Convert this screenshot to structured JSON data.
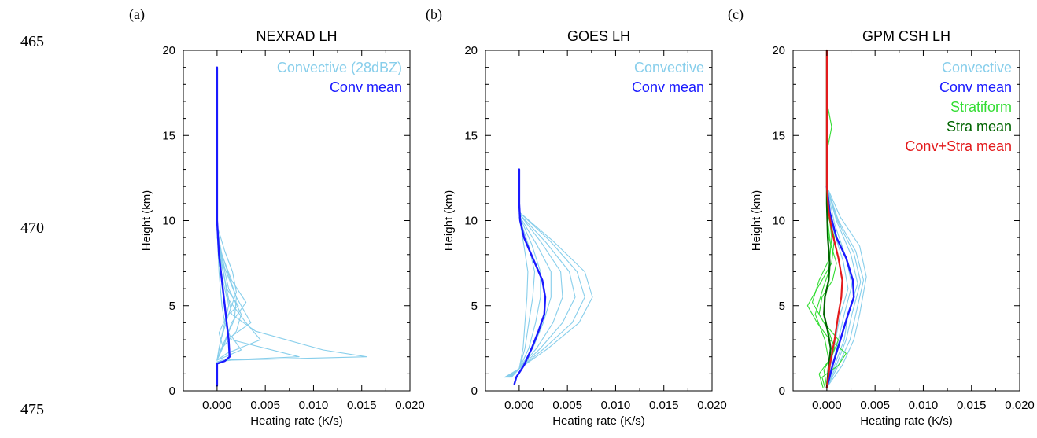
{
  "line_numbers": [
    "465",
    "470",
    "475"
  ],
  "chart_data": [
    {
      "type": "line",
      "panel_label": "(a)",
      "title": "NEXRAD LH",
      "xlabel": "Heating rate (K/s)",
      "ylabel": "Height (km)",
      "xlim": [
        -0.0035,
        0.02
      ],
      "ylim": [
        0,
        20
      ],
      "xticks": [
        "0.000",
        "0.005",
        "0.010",
        "0.015",
        "0.020"
      ],
      "yticks": [
        "0",
        "5",
        "10",
        "15",
        "20"
      ],
      "legend_position": "top-right",
      "legend": [
        {
          "label": "Convective (28dBZ)",
          "color": "#87ceeb"
        },
        {
          "label": "Conv mean",
          "color": "#1a1aff"
        }
      ],
      "series": [
        {
          "color": "#87ceeb",
          "x": [
            0,
            0,
            0.0005,
            0.0085,
            0.0015,
            0.0008,
            0.0005,
            0.0002,
            0,
            0
          ],
          "y": [
            1.6,
            1.7,
            1.8,
            2.0,
            3.0,
            4.0,
            5.0,
            7.0,
            9.5,
            10
          ]
        },
        {
          "color": "#87ceeb",
          "x": [
            0,
            0,
            0.0015,
            0.0155,
            0.011,
            0.004,
            0.0015,
            0.001,
            0.0003,
            0
          ],
          "y": [
            1.6,
            1.7,
            1.8,
            2.0,
            2.4,
            3.5,
            4.5,
            6.0,
            8.0,
            9.5
          ]
        },
        {
          "color": "#87ceeb",
          "x": [
            0,
            0.001,
            0.0045,
            0.003,
            0.001,
            0.0002,
            0
          ],
          "y": [
            1.8,
            2.2,
            3.0,
            4.0,
            5.5,
            7.5,
            9.5
          ]
        },
        {
          "color": "#87ceeb",
          "x": [
            0,
            0.0005,
            0.002,
            0.0025,
            0.0012,
            0.0004,
            0
          ],
          "y": [
            1.8,
            2.5,
            3.5,
            4.5,
            6.0,
            8.0,
            9.8
          ]
        },
        {
          "color": "#87ceeb",
          "x": [
            0,
            0.0008,
            0.0015,
            0.003,
            0.0015,
            0.0005,
            0
          ],
          "y": [
            1.8,
            2.8,
            4.0,
            5.2,
            6.5,
            8.0,
            9.5
          ]
        },
        {
          "color": "#87ceeb",
          "x": [
            0,
            0.0002,
            0.0006,
            0.0012,
            0.0008,
            0.0002,
            0
          ],
          "y": [
            1.8,
            2.5,
            3.5,
            5.0,
            6.5,
            8.5,
            10
          ]
        },
        {
          "color": "#87ceeb",
          "x": [
            0,
            0.0003,
            0.001,
            0.0018,
            0.002,
            0.0012,
            0.0004,
            0
          ],
          "y": [
            1.8,
            2.3,
            3.2,
            4.2,
            5.5,
            6.8,
            8.2,
            9.6
          ]
        },
        {
          "color": "#87ceeb",
          "x": [
            0,
            0.0004,
            0.0012,
            0.002,
            0.0016,
            0.0008,
            0
          ],
          "y": [
            1.8,
            3.0,
            4.5,
            5.8,
            7.0,
            8.2,
            9.7
          ]
        },
        {
          "color": "#87ceeb",
          "x": [
            0,
            0.0006,
            0.0002,
            0.001,
            0.0022,
            0.001,
            0.0003,
            0
          ],
          "y": [
            1.8,
            2.6,
            3.4,
            4.4,
            5.0,
            6.0,
            7.8,
            9.4
          ]
        },
        {
          "color": "#87ceeb",
          "x": [
            0,
            0.0025,
            0.0015,
            0.0035,
            0.002,
            0.0008,
            0
          ],
          "y": [
            1.8,
            2.4,
            3.2,
            4.0,
            5.5,
            7.2,
            9.0
          ]
        },
        {
          "color": "#1a1aff",
          "width": 2.4,
          "x": [
            0,
            0,
            0.0008,
            0.0013,
            0.0012,
            0.001,
            0.0008,
            0.0006,
            0.0002,
            0,
            0
          ],
          "y": [
            0.3,
            1.6,
            1.75,
            2.0,
            3.0,
            4.0,
            5.0,
            6.0,
            8.0,
            10,
            19
          ]
        }
      ]
    },
    {
      "type": "line",
      "panel_label": "(b)",
      "title": "GOES LH",
      "xlabel": "Heating rate (K/s)",
      "ylabel": "Height (km)",
      "xlim": [
        -0.0035,
        0.02
      ],
      "ylim": [
        0,
        20
      ],
      "xticks": [
        "0.000",
        "0.005",
        "0.010",
        "0.015",
        "0.020"
      ],
      "yticks": [
        "0",
        "5",
        "10",
        "15",
        "20"
      ],
      "legend_position": "top-right",
      "legend": [
        {
          "label": "Convective",
          "color": "#87ceeb"
        },
        {
          "label": "Conv mean",
          "color": "#1a1aff"
        }
      ],
      "series": [
        {
          "color": "#87ceeb",
          "x": [
            -0.0008,
            0,
            0.0004,
            0.0006,
            0.0008,
            0.0009,
            0.0005,
            0
          ],
          "y": [
            0.8,
            1.3,
            2.5,
            4.0,
            5.5,
            7.0,
            8.5,
            10.2
          ]
        },
        {
          "color": "#87ceeb",
          "x": [
            -0.0009,
            0,
            0.0006,
            0.001,
            0.0014,
            0.0016,
            0.001,
            0
          ],
          "y": [
            0.8,
            1.3,
            2.5,
            4.0,
            5.5,
            7.0,
            8.5,
            10.2
          ]
        },
        {
          "color": "#87ceeb",
          "x": [
            -0.001,
            0,
            0.001,
            0.0017,
            0.0022,
            0.0022,
            0.0013,
            0
          ],
          "y": [
            0.8,
            1.3,
            2.5,
            4.0,
            5.5,
            7.0,
            8.6,
            10.3
          ]
        },
        {
          "color": "#87ceeb",
          "x": [
            -0.0011,
            0,
            0.0014,
            0.0025,
            0.0033,
            0.0033,
            0.0018,
            0
          ],
          "y": [
            0.8,
            1.3,
            2.5,
            4.0,
            5.5,
            7.0,
            8.6,
            10.3
          ]
        },
        {
          "color": "#87ceeb",
          "x": [
            -0.0012,
            0,
            0.0018,
            0.0035,
            0.0045,
            0.0043,
            0.0023,
            0
          ],
          "y": [
            0.8,
            1.3,
            2.5,
            4.0,
            5.5,
            7.0,
            8.7,
            10.4
          ]
        },
        {
          "color": "#87ceeb",
          "x": [
            -0.0013,
            0,
            0.0022,
            0.0045,
            0.0058,
            0.0052,
            0.0028,
            0
          ],
          "y": [
            0.8,
            1.3,
            2.5,
            4.0,
            5.5,
            7.0,
            8.7,
            10.4
          ]
        },
        {
          "color": "#87ceeb",
          "x": [
            -0.0014,
            0,
            0.0026,
            0.0055,
            0.0068,
            0.006,
            0.0032,
            0
          ],
          "y": [
            0.8,
            1.3,
            2.5,
            4.0,
            5.5,
            7.0,
            8.8,
            10.5
          ]
        },
        {
          "color": "#87ceeb",
          "x": [
            -0.0015,
            0,
            0.003,
            0.0062,
            0.0076,
            0.0068,
            0.0035,
            0
          ],
          "y": [
            0.8,
            1.3,
            2.5,
            4.0,
            5.5,
            7.0,
            8.8,
            10.5
          ]
        },
        {
          "color": "#1a1aff",
          "width": 2.4,
          "x": [
            -0.0005,
            -0.0003,
            0.0005,
            0.0013,
            0.002,
            0.0026,
            0.0027,
            0.0024,
            0.0014,
            0.0005,
            0.0001,
            0,
            0
          ],
          "y": [
            0.4,
            0.8,
            1.5,
            2.5,
            3.5,
            4.5,
            5.5,
            6.5,
            7.8,
            9.0,
            10.0,
            11.0,
            13.0
          ]
        }
      ]
    },
    {
      "type": "line",
      "panel_label": "(c)",
      "title": "GPM CSH LH",
      "xlabel": "Heating rate (K/s)",
      "ylabel": "Height (km)",
      "xlim": [
        -0.0035,
        0.02
      ],
      "ylim": [
        0,
        20
      ],
      "xticks": [
        "0.000",
        "0.005",
        "0.010",
        "0.015",
        "0.020"
      ],
      "yticks": [
        "0",
        "5",
        "10",
        "15",
        "20"
      ],
      "legend_position": "top-right",
      "legend": [
        {
          "label": "Convective",
          "color": "#87ceeb"
        },
        {
          "label": "Conv mean",
          "color": "#1a1aff"
        },
        {
          "label": "Stratiform",
          "color": "#33dd33"
        },
        {
          "label": "Stra mean",
          "color": "#006400"
        },
        {
          "label": "Conv+Stra mean",
          "color": "#e31a1c"
        }
      ],
      "series": [
        {
          "color": "#87ceeb",
          "x": [
            0,
            0.0008,
            0.0018,
            0.0022,
            0.0032,
            0.0025,
            0.001,
            0
          ],
          "y": [
            0.2,
            1.5,
            3.0,
            4.5,
            6.3,
            8.0,
            10.0,
            12
          ]
        },
        {
          "color": "#87ceeb",
          "x": [
            0,
            0.0012,
            0.0024,
            0.003,
            0.0038,
            0.003,
            0.0012,
            0
          ],
          "y": [
            0.2,
            1.5,
            3.0,
            4.5,
            6.5,
            8.2,
            10.0,
            12
          ]
        },
        {
          "color": "#87ceeb",
          "x": [
            0,
            0.0016,
            0.0028,
            0.0034,
            0.0041,
            0.0034,
            0.0014,
            0
          ],
          "y": [
            0.2,
            1.5,
            3.0,
            4.5,
            6.7,
            8.5,
            10.2,
            12
          ]
        },
        {
          "color": "#87ceeb",
          "x": [
            0,
            0.0006,
            0.0012,
            0.0018,
            0.0026,
            0.002,
            0.0008,
            0
          ],
          "y": [
            0.2,
            1.5,
            3.0,
            4.5,
            6.2,
            7.8,
            9.8,
            12
          ]
        },
        {
          "color": "#87ceeb",
          "x": [
            0,
            0.001,
            0.002,
            0.0026,
            0.0035,
            0.0028,
            0.0011,
            0
          ],
          "y": [
            0.2,
            1.5,
            3.0,
            4.5,
            6.4,
            8.1,
            10.0,
            12
          ]
        },
        {
          "color": "#87ceeb",
          "x": [
            0,
            0.0004,
            0.0009,
            0.0014,
            0.0022,
            0.0017,
            0.0006,
            0
          ],
          "y": [
            0.2,
            1.5,
            3.0,
            4.5,
            6.0,
            7.6,
            9.6,
            12
          ]
        },
        {
          "color": "#33dd33",
          "x": [
            -0.0002,
            -0.0005,
            0.0012,
            0.002,
            0.0003,
            -0.001,
            -0.002,
            -0.001,
            0.0005,
            0.0008,
            0,
            0,
            0
          ],
          "y": [
            0.2,
            0.8,
            1.5,
            2.2,
            3.0,
            4.0,
            5.0,
            6.0,
            7.5,
            9.0,
            10.5,
            13,
            20
          ]
        },
        {
          "color": "#33dd33",
          "x": [
            -0.0004,
            -0.0008,
            0.0005,
            0.0012,
            -0.0003,
            -0.0015,
            -0.0008,
            0.0003,
            0.0005,
            0.0002,
            0,
            0
          ],
          "y": [
            0.2,
            1.0,
            2.0,
            3.0,
            4.0,
            5.2,
            6.5,
            7.8,
            9.0,
            10.5,
            12,
            20
          ]
        },
        {
          "color": "#33dd33",
          "x": [
            0,
            -0.0003,
            0.0008,
            0.0002,
            -0.0008,
            -0.0005,
            0.0006,
            0.001,
            0.0002,
            0,
            0,
            0.0005,
            0,
            0
          ],
          "y": [
            0.2,
            1.2,
            2.5,
            3.5,
            4.5,
            5.5,
            6.5,
            7.5,
            9.0,
            10.5,
            14,
            15.5,
            17,
            20
          ]
        },
        {
          "color": "#33dd33",
          "x": [
            0,
            0.0003,
            -0.0002,
            -0.0012,
            -0.0004,
            0.0002,
            0.0004,
            0,
            0
          ],
          "y": [
            0.2,
            1.5,
            3.0,
            4.5,
            6.0,
            7.0,
            8.5,
            10.5,
            20
          ]
        },
        {
          "color": "#006400",
          "width": 2.2,
          "x": [
            0,
            0.0002,
            0.0004,
            0.0001,
            -0.0003,
            -0.0002,
            0.0002,
            0.0003,
            0.0001,
            0,
            0
          ],
          "y": [
            0.2,
            1.5,
            2.5,
            3.5,
            4.5,
            5.5,
            6.5,
            7.5,
            9.0,
            11.0,
            20
          ]
        },
        {
          "color": "#1a1aff",
          "width": 2.4,
          "x": [
            0,
            0.0006,
            0.0014,
            0.0022,
            0.0028,
            0.0027,
            0.002,
            0.001,
            0.0003,
            0
          ],
          "y": [
            0.2,
            1.5,
            3.0,
            4.5,
            5.5,
            6.5,
            7.8,
            9.0,
            10.5,
            12
          ]
        },
        {
          "color": "#e31a1c",
          "width": 2.2,
          "x": [
            0,
            0.0003,
            0.0008,
            0.0012,
            0.0015,
            0.0016,
            0.0012,
            0.0006,
            0.0002,
            0,
            0
          ],
          "y": [
            0.2,
            1.5,
            3.0,
            4.5,
            5.5,
            6.5,
            7.8,
            9.2,
            10.5,
            12,
            20
          ]
        }
      ]
    }
  ]
}
